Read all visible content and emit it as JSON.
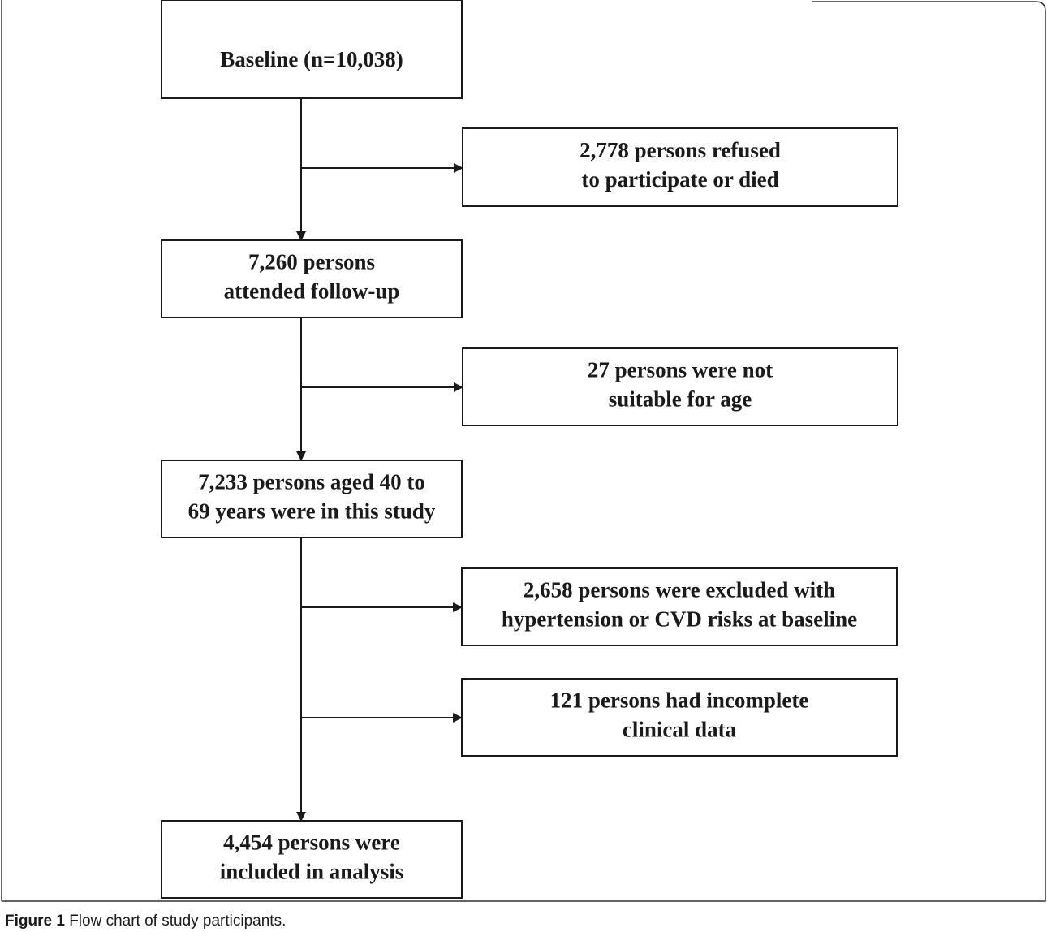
{
  "nodes": [
    {
      "lines": [
        "Baseline (n=10,038)"
      ]
    },
    {
      "lines": [
        "2,778 persons refused",
        "to participate or died"
      ]
    },
    {
      "lines": [
        "7,260 persons",
        "attended follow-up"
      ]
    },
    {
      "lines": [
        "27 persons were not",
        "suitable for age"
      ]
    },
    {
      "lines": [
        "7,233 persons aged 40 to",
        "69 years were in this study"
      ]
    },
    {
      "lines": [
        "2,658 persons were excluded with",
        "hypertension or CVD risks at baseline"
      ]
    },
    {
      "lines": [
        "121 persons had incomplete",
        "clinical data"
      ]
    },
    {
      "lines": [
        "4,454 persons were",
        "included in analysis"
      ]
    }
  ],
  "caption": {
    "label": "Figure 1",
    "text": "Flow chart of study participants."
  }
}
